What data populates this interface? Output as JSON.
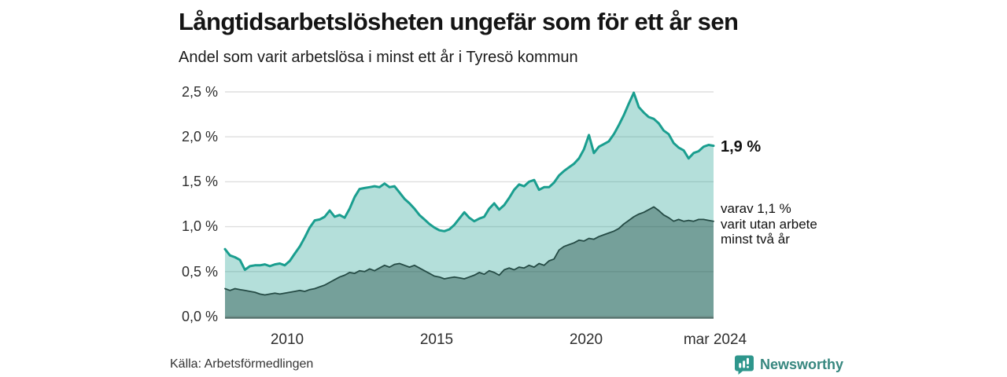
{
  "title": "Långtidsarbetslösheten ungefär som för ett år sen",
  "subtitle": "Andel som varit arbetslösa i minst ett år i Tyresö kommun",
  "source": "Källa: Arbetsförmedlingen",
  "branding": {
    "name": "Newsworthy",
    "icon": "newsworthy-speech-bubble-bars",
    "color": "#2e968c",
    "label_color": "#37877f"
  },
  "annotations": {
    "latest_total": "1,9 %",
    "subset_line1": "varav 1,1 %",
    "subset_line2": "varit utan arbete",
    "subset_line3": "minst två år"
  },
  "chart_data": {
    "type": "area",
    "title": "Långtidsarbetslösheten ungefär som för ett år sen",
    "subtitle": "Andel som varit arbetslösa i minst ett år i Tyresö kommun",
    "unit": "%",
    "grid": true,
    "grid_color": "#dedede",
    "baseline_color": "#4f6e68",
    "x_start": 2007.9167,
    "x_step": 0.1666667,
    "x_range": [
      2007.9167,
      2024.25
    ],
    "ylim": [
      0,
      2.5
    ],
    "y_axis": {
      "ticks": [
        {
          "label": "2,5 %",
          "value": 2.5
        },
        {
          "label": "2,0 %",
          "value": 2.0
        },
        {
          "label": "1,5 %",
          "value": 1.5
        },
        {
          "label": "1,0 %",
          "value": 1.0
        },
        {
          "label": "0,5 %",
          "value": 0.5
        },
        {
          "label": "0,0 %",
          "value": 0.0
        }
      ]
    },
    "x_axis": {
      "ticks": [
        {
          "label": "2010",
          "year": 2010
        },
        {
          "label": "2015",
          "year": 2015
        },
        {
          "label": "2020",
          "year": 2020
        },
        {
          "label": "mar 2024",
          "year": 2024.25
        }
      ]
    },
    "series": [
      {
        "name": "Andel arbetslösa minst ett år",
        "latest_value": 1.9,
        "latest_label": "1,9 %",
        "line_color": "#1a9e8f",
        "line_width": 3,
        "fill_color": "rgba(26,158,143,0.33)",
        "values": [
          0.75,
          0.68,
          0.66,
          0.63,
          0.52,
          0.56,
          0.57,
          0.57,
          0.58,
          0.56,
          0.58,
          0.59,
          0.57,
          0.62,
          0.7,
          0.78,
          0.88,
          0.99,
          1.07,
          1.08,
          1.11,
          1.18,
          1.11,
          1.13,
          1.1,
          1.2,
          1.33,
          1.42,
          1.43,
          1.44,
          1.45,
          1.44,
          1.48,
          1.44,
          1.45,
          1.38,
          1.31,
          1.26,
          1.2,
          1.13,
          1.08,
          1.03,
          0.99,
          0.96,
          0.95,
          0.97,
          1.02,
          1.09,
          1.16,
          1.1,
          1.06,
          1.09,
          1.11,
          1.2,
          1.26,
          1.19,
          1.24,
          1.32,
          1.41,
          1.47,
          1.45,
          1.5,
          1.52,
          1.41,
          1.44,
          1.44,
          1.49,
          1.57,
          1.62,
          1.66,
          1.7,
          1.76,
          1.86,
          2.02,
          1.82,
          1.89,
          1.92,
          1.95,
          2.03,
          2.13,
          2.24,
          2.37,
          2.49,
          2.33,
          2.27,
          2.22,
          2.2,
          2.15,
          2.07,
          2.03,
          1.93,
          1.88,
          1.85,
          1.76,
          1.82,
          1.84,
          1.89,
          1.91,
          1.9
        ]
      },
      {
        "name": "varav utan arbete minst två år",
        "latest_value": 1.1,
        "latest_label": "1,1 %",
        "line_color": "#254b45",
        "line_width": 1.8,
        "fill_color": "rgba(22,66,58,0.40)",
        "values": [
          0.31,
          0.29,
          0.31,
          0.3,
          0.29,
          0.28,
          0.27,
          0.25,
          0.24,
          0.25,
          0.26,
          0.25,
          0.26,
          0.27,
          0.28,
          0.29,
          0.28,
          0.3,
          0.31,
          0.33,
          0.35,
          0.38,
          0.41,
          0.44,
          0.46,
          0.49,
          0.48,
          0.51,
          0.5,
          0.53,
          0.51,
          0.54,
          0.57,
          0.55,
          0.58,
          0.59,
          0.57,
          0.55,
          0.57,
          0.54,
          0.51,
          0.48,
          0.45,
          0.44,
          0.42,
          0.43,
          0.44,
          0.43,
          0.42,
          0.44,
          0.46,
          0.49,
          0.47,
          0.51,
          0.49,
          0.46,
          0.52,
          0.54,
          0.52,
          0.55,
          0.54,
          0.57,
          0.55,
          0.59,
          0.57,
          0.62,
          0.64,
          0.74,
          0.78,
          0.8,
          0.82,
          0.85,
          0.84,
          0.87,
          0.86,
          0.89,
          0.91,
          0.93,
          0.95,
          0.98,
          1.03,
          1.07,
          1.11,
          1.14,
          1.16,
          1.19,
          1.22,
          1.18,
          1.13,
          1.1,
          1.06,
          1.08,
          1.06,
          1.07,
          1.06,
          1.08,
          1.08,
          1.07,
          1.06
        ]
      }
    ]
  }
}
